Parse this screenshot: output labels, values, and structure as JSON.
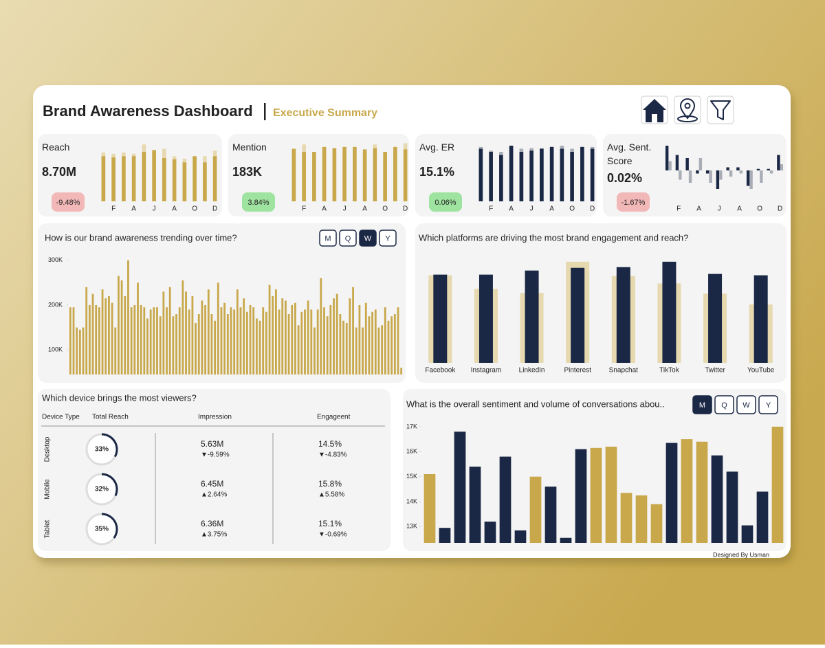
{
  "header": {
    "title": "Brand Awareness Dashboard",
    "subtitle": "Executive Summary"
  },
  "kpis": [
    {
      "label": "Reach",
      "value": "8.70M",
      "change": "-9.48%"
    },
    {
      "label": "Mention",
      "value": "183K",
      "change": "3.84%"
    },
    {
      "label": "Avg. ER",
      "value": "15.1%",
      "change": "0.06%"
    },
    {
      "label": "Avg. Sent. Score",
      "value": "0.02%",
      "change": "-1.67%"
    }
  ],
  "devices": {
    "title": "Which device brings the most viewers?",
    "columns": [
      "Device Type",
      "Total Reach",
      "Impression",
      "Engageent"
    ],
    "rows": [
      {
        "device": "Desktop",
        "reach": {
          "value": 33,
          "label": "33%"
        },
        "impression": "5.63M",
        "impression_change": "▼-9.59%",
        "engagement": "14.5%",
        "engagement_change": "▼-4.83%"
      },
      {
        "device": "Mobile",
        "reach": {
          "value": 32,
          "label": "32%"
        },
        "impression": "6.45M",
        "impression_change": "▲2.64%",
        "engagement": "15.8%",
        "engagement_change": "▲5.58%"
      },
      {
        "device": "Tablet",
        "reach": {
          "value": 35,
          "label": "35%"
        },
        "impression": "6.36M",
        "impression_change": "▲3.75%",
        "engagement": "15.1%",
        "engagement_change": "▼-0.69%"
      }
    ]
  },
  "footer": "Designed By Usman",
  "chart_data": [
    {
      "type": "bar",
      "layout": "overlap",
      "categories": [
        null,
        "F",
        null,
        "A",
        null,
        "J",
        null,
        "A",
        null,
        "O",
        null,
        "D"
      ],
      "ylim": [
        0,
        100
      ],
      "series": [
        {
          "color": "#e6d9b0",
          "values": [
            79,
            77,
            79,
            77,
            92,
            79,
            85,
            73,
            69,
            73,
            73,
            82
          ]
        },
        {
          "color": "#c8a84b",
          "values": [
            73,
            71,
            73,
            73,
            80,
            83,
            70,
            68,
            63,
            73,
            63,
            73
          ]
        }
      ]
    },
    {
      "type": "bar",
      "layout": "overlap",
      "categories": [
        null,
        "F",
        null,
        "A",
        null,
        "J",
        null,
        "A",
        null,
        "O",
        null,
        "D"
      ],
      "ylim": [
        0,
        100
      ],
      "series": [
        {
          "color": "#e6d9b0",
          "values": [
            78,
            92,
            70,
            76,
            78,
            80,
            82,
            76,
            92,
            72,
            80,
            94
          ]
        },
        {
          "color": "#c8a84b",
          "values": [
            85,
            80,
            80,
            88,
            86,
            88,
            88,
            84,
            86,
            80,
            88,
            84
          ]
        }
      ]
    },
    {
      "type": "bar",
      "layout": "overlap",
      "categories": [
        null,
        "F",
        null,
        "A",
        null,
        "J",
        null,
        "A",
        null,
        "O",
        null,
        "D"
      ],
      "ylim": [
        0,
        100
      ],
      "series": [
        {
          "color": "#a9adb5",
          "values": [
            88,
            82,
            80,
            85,
            85,
            86,
            86,
            85,
            90,
            85,
            82,
            88
          ]
        },
        {
          "color": "#1b2845",
          "values": [
            85,
            80,
            75,
            90,
            80,
            82,
            85,
            88,
            85,
            80,
            88,
            85
          ]
        }
      ]
    },
    {
      "type": "bar",
      "layout": "grouped",
      "categories": [
        null,
        "F",
        null,
        "A",
        null,
        "J",
        null,
        "A",
        null,
        "O",
        null,
        "D"
      ],
      "ylim": [
        -1,
        1
      ],
      "series": [
        {
          "color": "#1b2845",
          "values": [
            0.8,
            0.5,
            0.4,
            -0.1,
            -0.1,
            -0.6,
            0.1,
            0.1,
            -0.5,
            0.05,
            0.05,
            0.5
          ]
        },
        {
          "color": "#a9adb5",
          "values": [
            0.3,
            -0.3,
            -0.4,
            0.4,
            -0.4,
            -0.3,
            -0.2,
            -0.1,
            -0.6,
            -0.4,
            -0.1,
            0.2
          ]
        }
      ]
    },
    {
      "type": "bar",
      "title": "How is our brand awareness trending over time?",
      "buttons": [
        "M",
        "Q",
        "W",
        "Y"
      ],
      "selected": 2,
      "color": "#c8a84b",
      "ylim": [
        45000,
        315000
      ],
      "yticks": [
        {
          "value": 100000,
          "label": "100K"
        },
        {
          "value": 200000,
          "label": "200K"
        },
        {
          "value": 300000,
          "label": "300K"
        }
      ],
      "values": [
        195000,
        195000,
        150000,
        145000,
        150000,
        240000,
        200000,
        225000,
        200000,
        195000,
        235000,
        215000,
        220000,
        205000,
        150000,
        265000,
        255000,
        220000,
        300000,
        195000,
        200000,
        250000,
        200000,
        195000,
        170000,
        190000,
        195000,
        195000,
        175000,
        230000,
        195000,
        240000,
        175000,
        180000,
        195000,
        255000,
        230000,
        190000,
        220000,
        160000,
        180000,
        210000,
        200000,
        235000,
        180000,
        165000,
        250000,
        195000,
        205000,
        180000,
        195000,
        190000,
        235000,
        195000,
        215000,
        185000,
        200000,
        195000,
        170000,
        165000,
        195000,
        185000,
        245000,
        220000,
        235000,
        190000,
        215000,
        210000,
        180000,
        200000,
        205000,
        155000,
        185000,
        190000,
        210000,
        190000,
        150000,
        190000,
        260000,
        195000,
        175000,
        200000,
        215000,
        225000,
        180000,
        165000,
        160000,
        215000,
        240000,
        150000,
        200000,
        150000,
        205000,
        175000,
        185000,
        190000,
        150000,
        155000,
        195000,
        165000,
        175000,
        180000,
        195000,
        60000
      ]
    },
    {
      "type": "bar",
      "layout": "overlap",
      "title": "Which platforms are driving the most brand engagement and reach?",
      "categories": [
        "Facebook",
        "Instagram",
        "LinkedIn",
        "Pinterest",
        "Snapchat",
        "TikTok",
        "Twitter",
        "YouTube"
      ],
      "ylim": [
        0,
        160
      ],
      "series": [
        {
          "color": "#e6d9b0",
          "values": [
            129,
            109,
            103,
            149,
            128,
            117,
            102,
            86
          ]
        },
        {
          "color": "#1b2845",
          "values": [
            130,
            130,
            136,
            140,
            141,
            149,
            131,
            129
          ]
        }
      ]
    },
    {
      "type": "bar",
      "title": "What is the overall sentiment and volume of conversations abou..",
      "buttons": [
        "M",
        "Q",
        "W",
        "Y"
      ],
      "selected": 0,
      "ylim": [
        12350,
        17300
      ],
      "yticks": [
        {
          "value": 13000,
          "label": "13K"
        },
        {
          "value": 14000,
          "label": "14K"
        },
        {
          "value": 15000,
          "label": "15K"
        },
        {
          "value": 16000,
          "label": "16K"
        },
        {
          "value": 17000,
          "label": "17K"
        }
      ],
      "values": [
        15100,
        12950,
        16800,
        15400,
        13200,
        15800,
        12850,
        15000,
        14600,
        12550,
        16100,
        16150,
        16200,
        14350,
        14250,
        13900,
        16350,
        16500,
        16400,
        15850,
        15200,
        13050,
        14400,
        17000
      ],
      "colors": [
        "#c8a84b",
        "#1b2845",
        "#1b2845",
        "#1b2845",
        "#1b2845",
        "#1b2845",
        "#1b2845",
        "#c8a84b",
        "#1b2845",
        "#1b2845",
        "#1b2845",
        "#c8a84b",
        "#c8a84b",
        "#c8a84b",
        "#c8a84b",
        "#c8a84b",
        "#1b2845",
        "#c8a84b",
        "#c8a84b",
        "#1b2845",
        "#1b2845",
        "#1b2845",
        "#1b2845",
        "#c8a84b"
      ]
    }
  ]
}
